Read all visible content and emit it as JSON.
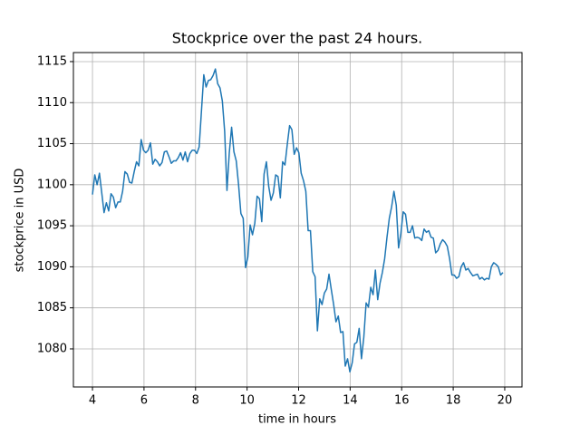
{
  "chart_data": {
    "type": "line",
    "title": "Stockprice over the past 24 hours.",
    "x_label": "time in hours",
    "y_label": "stockprice in USD",
    "grid": true,
    "xlim": [
      3.26,
      20.67
    ],
    "ylim": [
      1075.36,
      1116.1
    ],
    "xticks": [
      4,
      6,
      8,
      10,
      12,
      14,
      16,
      18,
      20
    ],
    "yticks": [
      1080,
      1085,
      1090,
      1095,
      1100,
      1105,
      1110,
      1115
    ],
    "x": [
      4,
      4.09,
      4.18,
      4.27,
      4.36,
      4.45,
      4.54,
      4.63,
      4.72,
      4.81,
      4.9,
      4.99,
      5.08,
      5.17,
      5.26,
      5.35,
      5.44,
      5.53,
      5.62,
      5.71,
      5.8,
      5.89,
      5.98,
      6.07,
      6.16,
      6.25,
      6.34,
      6.43,
      6.52,
      6.61,
      6.7,
      6.79,
      6.88,
      6.97,
      7.06,
      7.15,
      7.24,
      7.33,
      7.42,
      7.51,
      7.6,
      7.69,
      7.78,
      7.87,
      7.96,
      8.05,
      8.14,
      8.23,
      8.32,
      8.41,
      8.5,
      8.59,
      8.68,
      8.77,
      8.86,
      8.95,
      9.04,
      9.13,
      9.22,
      9.31,
      9.4,
      9.49,
      9.58,
      9.67,
      9.76,
      9.85,
      9.94,
      10.03,
      10.12,
      10.21,
      10.3,
      10.39,
      10.48,
      10.57,
      10.66,
      10.75,
      10.84,
      10.93,
      11.02,
      11.11,
      11.2,
      11.29,
      11.38,
      11.47,
      11.56,
      11.65,
      11.74,
      11.83,
      11.92,
      12.01,
      12.1,
      12.19,
      12.28,
      12.37,
      12.46,
      12.55,
      12.64,
      12.73,
      12.82,
      12.91,
      13,
      13.09,
      13.18,
      13.27,
      13.36,
      13.45,
      13.54,
      13.63,
      13.72,
      13.81,
      13.9,
      13.99,
      14.08,
      14.17,
      14.26,
      14.35,
      14.44,
      14.53,
      14.62,
      14.71,
      14.8,
      14.89,
      14.98,
      15.07,
      15.16,
      15.25,
      15.34,
      15.43,
      15.52,
      15.61,
      15.7,
      15.79,
      15.88,
      15.97,
      16.06,
      16.15,
      16.24,
      16.33,
      16.42,
      16.51,
      16.6,
      16.69,
      16.78,
      16.87,
      16.96,
      17.05,
      17.14,
      17.23,
      17.32,
      17.41,
      17.5,
      17.59,
      17.68,
      17.77,
      17.86,
      17.95,
      18.04,
      18.13,
      18.22,
      18.31,
      18.4,
      18.49,
      18.58,
      18.67,
      18.76,
      18.85,
      18.94,
      19.03,
      19.12,
      19.21,
      19.3,
      19.39,
      19.48,
      19.57,
      19.66,
      19.75,
      19.84,
      19.93
    ],
    "series": [
      {
        "color": "#1f77b4",
        "values": [
          1098.8,
          1101.2,
          1100.0,
          1101.4,
          1099.0,
          1096.6,
          1097.8,
          1096.8,
          1098.9,
          1098.5,
          1097.2,
          1097.9,
          1097.9,
          1099.2,
          1101.6,
          1101.3,
          1100.3,
          1100.2,
          1101.6,
          1102.8,
          1102.3,
          1105.5,
          1104.2,
          1103.9,
          1104.2,
          1105.1,
          1102.5,
          1103.1,
          1102.8,
          1102.3,
          1102.7,
          1104.0,
          1104.1,
          1103.4,
          1102.6,
          1102.9,
          1102.9,
          1103.3,
          1103.9,
          1103.0,
          1104.0,
          1102.8,
          1103.8,
          1104.2,
          1104.2,
          1103.8,
          1104.6,
          1109.0,
          1113.4,
          1111.9,
          1112.7,
          1112.8,
          1113.3,
          1114.1,
          1112.3,
          1111.8,
          1110.2,
          1106.5,
          1099.3,
          1103.9,
          1107.0,
          1104.0,
          1102.9,
          1100.0,
          1096.5,
          1095.9,
          1089.9,
          1091.2,
          1095.1,
          1093.9,
          1095.3,
          1098.6,
          1098.3,
          1095.5,
          1101.3,
          1102.8,
          1099.8,
          1098.1,
          1099.0,
          1101.2,
          1101.0,
          1098.4,
          1102.8,
          1102.4,
          1104.9,
          1107.2,
          1106.7,
          1103.7,
          1104.5,
          1103.9,
          1101.4,
          1100.5,
          1099.2,
          1094.4,
          1094.4,
          1089.4,
          1088.8,
          1082.2,
          1086.1,
          1085.4,
          1086.8,
          1087.3,
          1089.1,
          1087.2,
          1085.4,
          1083.3,
          1084.0,
          1082.0,
          1082.1,
          1077.9,
          1078.8,
          1077.2,
          1078.3,
          1080.6,
          1080.8,
          1082.5,
          1078.8,
          1081.4,
          1085.6,
          1085.1,
          1087.5,
          1086.6,
          1089.6,
          1086.0,
          1088.0,
          1089.3,
          1091.0,
          1093.6,
          1095.9,
          1097.3,
          1099.2,
          1097.5,
          1092.3,
          1094.1,
          1096.7,
          1096.4,
          1094.2,
          1094.2,
          1095.0,
          1093.5,
          1093.6,
          1093.5,
          1093.2,
          1094.6,
          1094.2,
          1094.4,
          1093.6,
          1093.5,
          1091.7,
          1092.0,
          1092.8,
          1093.3,
          1093.0,
          1092.5,
          1091.0,
          1089.0,
          1089.0,
          1088.6,
          1088.8,
          1090.0,
          1090.5,
          1089.6,
          1089.8,
          1089.3,
          1088.9,
          1089.0,
          1089.1,
          1088.5,
          1088.7,
          1088.4,
          1088.6,
          1088.5,
          1090.0,
          1090.5,
          1090.3,
          1090.0,
          1089.0,
          1089.3
        ]
      }
    ]
  }
}
